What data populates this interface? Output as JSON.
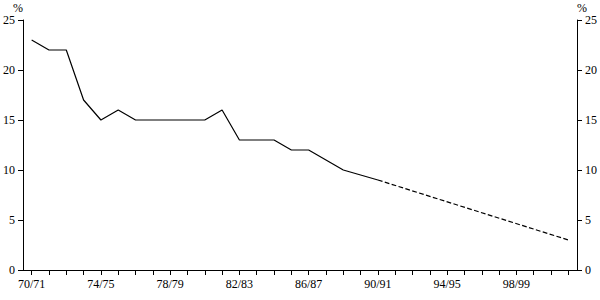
{
  "chart_data": {
    "type": "line",
    "ylabel": "%",
    "y2label": "%",
    "categories": [
      "70/71",
      null,
      null,
      null,
      "74/75",
      null,
      null,
      null,
      "78/79",
      null,
      null,
      null,
      "82/83",
      null,
      null,
      null,
      "86/87",
      null,
      null,
      null,
      "90/91",
      null,
      null,
      null,
      "94/95",
      null,
      null,
      null,
      "98/99",
      null,
      null,
      null
    ],
    "series": [
      {
        "color": "#000000",
        "line_style": "solid",
        "values": [
          23,
          22,
          22,
          17,
          15,
          16,
          15,
          15,
          15,
          15,
          15,
          16,
          13,
          13,
          13,
          12,
          12,
          11,
          10,
          9.5,
          9,
          null,
          null,
          null,
          null,
          null,
          null,
          null,
          null,
          null,
          null,
          null
        ]
      },
      {
        "color": "#000000",
        "line_style": "dashed",
        "values": [
          null,
          null,
          null,
          null,
          null,
          null,
          null,
          null,
          null,
          null,
          null,
          null,
          null,
          null,
          null,
          null,
          null,
          null,
          null,
          null,
          9,
          null,
          null,
          null,
          null,
          null,
          null,
          null,
          null,
          null,
          null,
          3
        ]
      }
    ],
    "ylim": [
      0,
      25
    ],
    "yticks": [
      0,
      5,
      10,
      15,
      20,
      25
    ],
    "y2lim": [
      0,
      25
    ],
    "y2ticks": [
      0,
      5,
      10,
      15,
      20,
      25
    ],
    "grid": false
  }
}
